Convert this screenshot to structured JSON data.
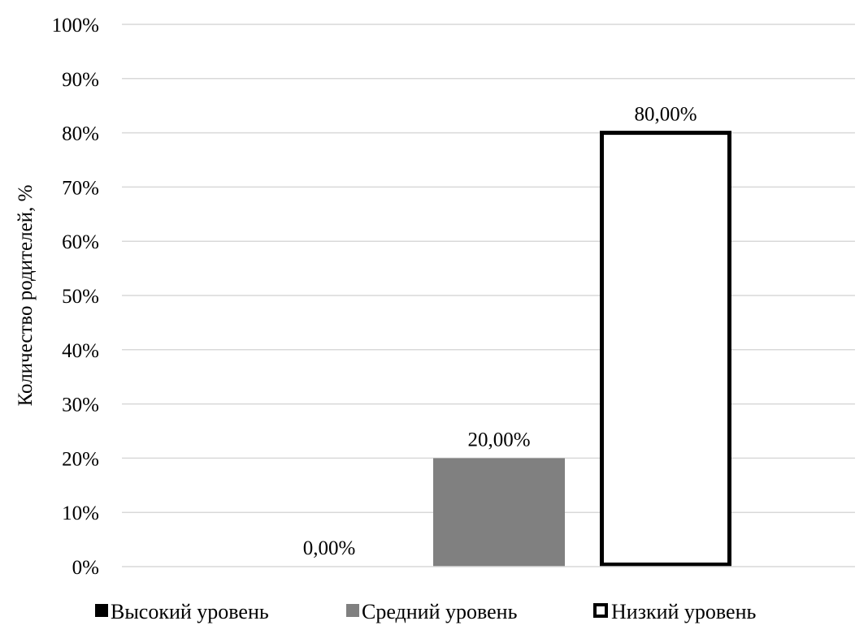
{
  "chart_data": {
    "type": "bar",
    "title": "",
    "xlabel": "",
    "ylabel": "Количество родителей, %",
    "ylim": [
      0,
      100
    ],
    "yticks": [
      0,
      10,
      20,
      30,
      40,
      50,
      60,
      70,
      80,
      90,
      100
    ],
    "ytick_labels": [
      "0%",
      "10%",
      "20%",
      "30%",
      "40%",
      "50%",
      "60%",
      "70%",
      "80%",
      "90%",
      "100%"
    ],
    "grid": true,
    "legend_position": "bottom",
    "series": [
      {
        "name": "Высокий уровень",
        "value": 0,
        "label": "0,00%",
        "fill": "#000000",
        "stroke": "none",
        "legend_icon": "black-square-icon"
      },
      {
        "name": "Средний уровень",
        "value": 20,
        "label": "20,00%",
        "fill": "#808080",
        "stroke": "none",
        "legend_icon": "gray-square-icon"
      },
      {
        "name": "Низкий уровень",
        "value": 80,
        "label": "80,00%",
        "fill": "#ffffff",
        "stroke": "#000000",
        "legend_icon": "outlined-square-icon"
      }
    ],
    "colors": {
      "grid": "#d9d9d9",
      "text": "#000000"
    }
  }
}
